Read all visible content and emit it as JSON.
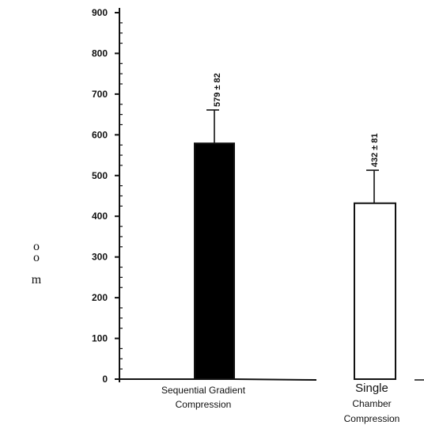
{
  "chart_data": {
    "type": "bar",
    "categories": [
      [
        "Sequential Gradient",
        "Compression"
      ],
      [
        "Single",
        "Chamber",
        "Compression"
      ]
    ],
    "values": [
      579,
      432
    ],
    "errors": [
      82,
      81
    ],
    "data_labels": [
      "579 ± 82",
      "432 ± 81"
    ],
    "ylabel_fragments": [
      "o",
      "o",
      "m"
    ],
    "ylim": [
      0,
      900
    ],
    "yticks": [
      0,
      100,
      200,
      300,
      400,
      500,
      600,
      700,
      800,
      900
    ],
    "grid": false,
    "legend": "none",
    "bar_fills": [
      "#000000",
      "#ffffff"
    ]
  }
}
